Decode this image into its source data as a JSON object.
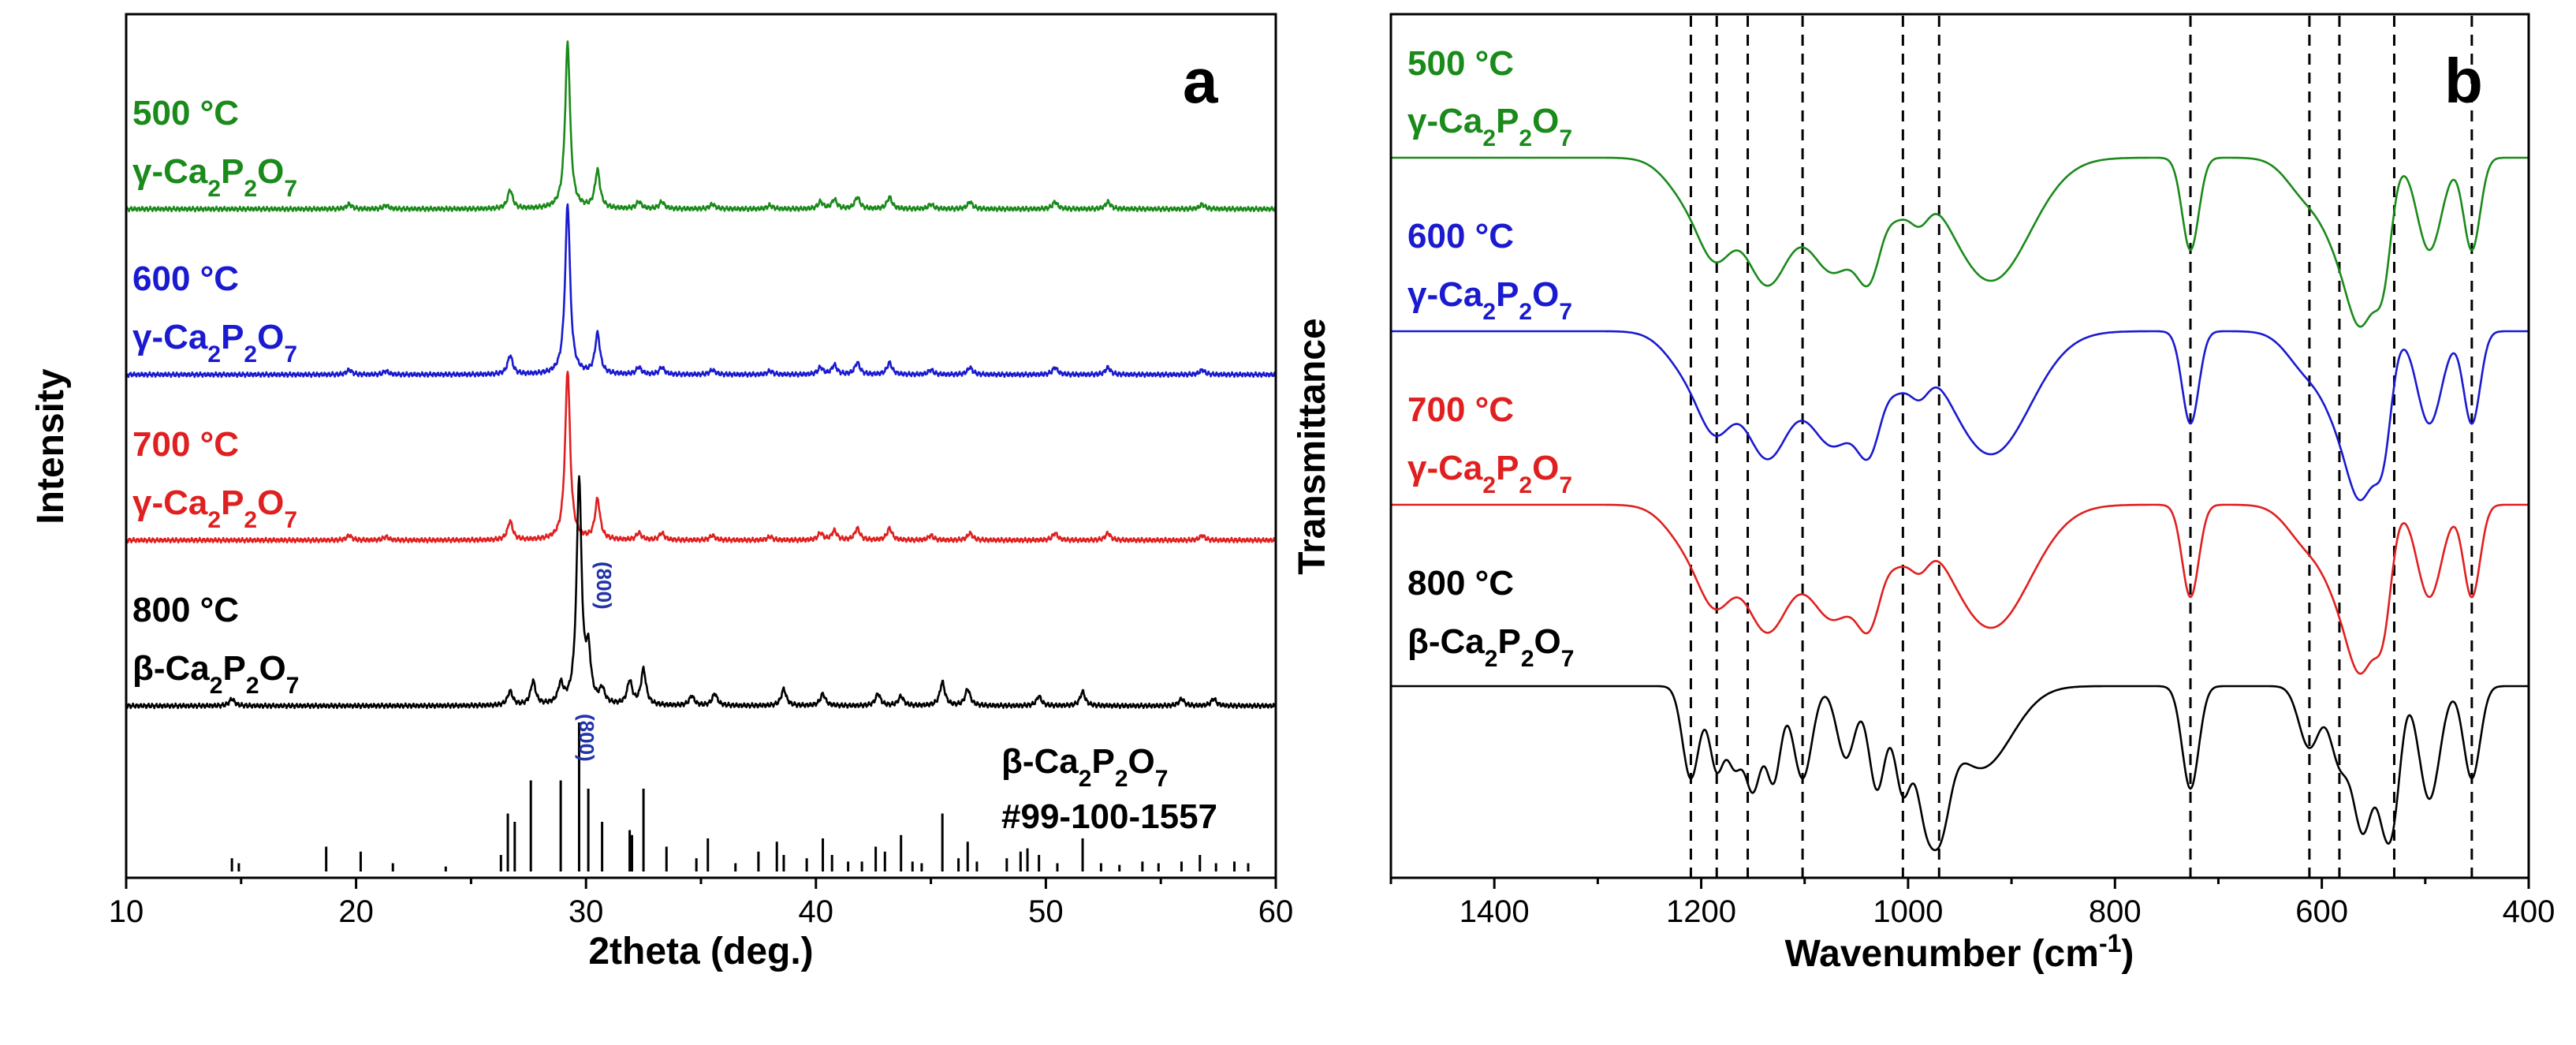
{
  "chart_data": [
    {
      "type": "line",
      "panel_label": "a",
      "xlabel": "2theta (deg.)",
      "ylabel": "Intensity",
      "xlim": [
        10,
        60
      ],
      "xticks": [
        10,
        20,
        30,
        40,
        50,
        60
      ],
      "series": [
        {
          "name": "500 °C",
          "phase": "γ-Ca2P2O7",
          "color": "#1a8a1a",
          "offset": 3,
          "peaks": [
            [
              19.7,
              0.02
            ],
            [
              21.3,
              0.015
            ],
            [
              26.7,
              0.08
            ],
            [
              29.2,
              0.7
            ],
            [
              30.5,
              0.16
            ],
            [
              32.3,
              0.03
            ],
            [
              33.3,
              0.03
            ],
            [
              35.5,
              0.02
            ],
            [
              38.0,
              0.015
            ],
            [
              40.2,
              0.03
            ],
            [
              40.8,
              0.04
            ],
            [
              41.8,
              0.05
            ],
            [
              43.2,
              0.05
            ],
            [
              45.0,
              0.02
            ],
            [
              46.7,
              0.03
            ],
            [
              50.4,
              0.03
            ],
            [
              52.7,
              0.03
            ],
            [
              56.8,
              0.02
            ]
          ]
        },
        {
          "name": "600 °C",
          "phase": "γ-Ca2P2O7",
          "color": "#1a1ad0",
          "offset": 2,
          "peaks": [
            [
              19.7,
              0.02
            ],
            [
              21.3,
              0.015
            ],
            [
              26.7,
              0.08
            ],
            [
              29.2,
              0.72
            ],
            [
              30.5,
              0.17
            ],
            [
              32.3,
              0.03
            ],
            [
              33.3,
              0.03
            ],
            [
              35.5,
              0.02
            ],
            [
              38.0,
              0.015
            ],
            [
              40.2,
              0.03
            ],
            [
              40.8,
              0.04
            ],
            [
              41.8,
              0.05
            ],
            [
              43.2,
              0.05
            ],
            [
              45.0,
              0.02
            ],
            [
              46.7,
              0.03
            ],
            [
              50.4,
              0.03
            ],
            [
              52.7,
              0.03
            ],
            [
              56.8,
              0.02
            ]
          ]
        },
        {
          "name": "700 °C",
          "phase": "γ-Ca2P2O7",
          "color": "#e02020",
          "offset": 1,
          "peaks": [
            [
              19.7,
              0.02
            ],
            [
              21.3,
              0.015
            ],
            [
              26.7,
              0.08
            ],
            [
              29.2,
              0.72
            ],
            [
              30.5,
              0.17
            ],
            [
              32.3,
              0.03
            ],
            [
              33.3,
              0.03
            ],
            [
              35.5,
              0.02
            ],
            [
              38.0,
              0.015
            ],
            [
              40.2,
              0.03
            ],
            [
              40.8,
              0.04
            ],
            [
              41.8,
              0.05
            ],
            [
              43.2,
              0.05
            ],
            [
              45.0,
              0.02
            ],
            [
              46.7,
              0.03
            ],
            [
              50.4,
              0.03
            ],
            [
              52.7,
              0.03
            ],
            [
              56.8,
              0.02
            ]
          ]
        },
        {
          "name": "800 °C",
          "phase": "β-Ca2P2O7",
          "color": "#000000",
          "offset": 0,
          "peaks": [
            [
              14.6,
              0.03
            ],
            [
              26.7,
              0.06
            ],
            [
              27.7,
              0.1
            ],
            [
              28.9,
              0.08
            ],
            [
              29.7,
              0.95
            ],
            [
              30.1,
              0.2
            ],
            [
              30.7,
              0.06
            ],
            [
              31.9,
              0.1
            ],
            [
              32.5,
              0.15
            ],
            [
              34.6,
              0.04
            ],
            [
              35.6,
              0.05
            ],
            [
              38.6,
              0.07
            ],
            [
              40.3,
              0.05
            ],
            [
              42.7,
              0.05
            ],
            [
              43.7,
              0.04
            ],
            [
              45.5,
              0.1
            ],
            [
              46.6,
              0.07
            ],
            [
              49.7,
              0.04
            ],
            [
              51.6,
              0.06
            ],
            [
              55.9,
              0.03
            ],
            [
              57.3,
              0.03
            ]
          ]
        }
      ],
      "annotation_800": "(800)",
      "reference": {
        "phase": "β-Ca2P2O7",
        "card": "#99-100-1557",
        "lines": [
          [
            14.6,
            0.08
          ],
          [
            14.9,
            0.05
          ],
          [
            18.7,
            0.15
          ],
          [
            20.2,
            0.12
          ],
          [
            21.6,
            0.05
          ],
          [
            23.9,
            0.03
          ],
          [
            26.3,
            0.1
          ],
          [
            26.6,
            0.35
          ],
          [
            26.9,
            0.3
          ],
          [
            27.6,
            0.55
          ],
          [
            28.9,
            0.55
          ],
          [
            29.7,
            0.9
          ],
          [
            30.1,
            0.5
          ],
          [
            30.7,
            0.3
          ],
          [
            31.9,
            0.25
          ],
          [
            32.0,
            0.22
          ],
          [
            32.5,
            0.5
          ],
          [
            33.5,
            0.15
          ],
          [
            34.8,
            0.08
          ],
          [
            35.3,
            0.2
          ],
          [
            36.5,
            0.05
          ],
          [
            37.5,
            0.12
          ],
          [
            38.3,
            0.18
          ],
          [
            38.6,
            0.1
          ],
          [
            39.6,
            0.08
          ],
          [
            40.3,
            0.2
          ],
          [
            40.7,
            0.1
          ],
          [
            41.4,
            0.06
          ],
          [
            42.0,
            0.06
          ],
          [
            42.6,
            0.15
          ],
          [
            43.0,
            0.12
          ],
          [
            43.7,
            0.22
          ],
          [
            44.2,
            0.06
          ],
          [
            44.6,
            0.05
          ],
          [
            45.5,
            0.35
          ],
          [
            46.2,
            0.08
          ],
          [
            46.6,
            0.18
          ],
          [
            47.0,
            0.06
          ],
          [
            48.3,
            0.08
          ],
          [
            48.9,
            0.12
          ],
          [
            49.2,
            0.14
          ],
          [
            49.7,
            0.1
          ],
          [
            50.5,
            0.05
          ],
          [
            51.6,
            0.2
          ],
          [
            52.4,
            0.05
          ],
          [
            53.2,
            0.04
          ],
          [
            54.2,
            0.06
          ],
          [
            54.9,
            0.05
          ],
          [
            55.9,
            0.06
          ],
          [
            56.7,
            0.1
          ],
          [
            57.4,
            0.05
          ],
          [
            58.2,
            0.06
          ],
          [
            58.8,
            0.05
          ]
        ]
      }
    },
    {
      "type": "line",
      "panel_label": "b",
      "xlabel": "Wavenumber (cm-1)",
      "ylabel": "Transmittance",
      "xlim": [
        1500,
        400
      ],
      "xticks": [
        1400,
        1200,
        1000,
        800,
        600,
        400
      ],
      "reference_lines": [
        1210,
        1185,
        1155,
        1102,
        1005,
        970,
        727,
        612,
        583,
        530,
        455
      ],
      "series": [
        {
          "name": "500 °C",
          "phase": "γ-Ca2P2O7",
          "color": "#1a8a1a",
          "offset": 3,
          "bands": [
            [
              1210,
              0.2,
              22
            ],
            [
              1185,
              0.35,
              16
            ],
            [
              1137,
              0.6,
              22
            ],
            [
              1072,
              0.55,
              25
            ],
            [
              1036,
              0.4,
              12
            ],
            [
              1010,
              0.18,
              10
            ],
            [
              990,
              0.2,
              10
            ],
            [
              920,
              0.6,
              38
            ],
            [
              727,
              0.45,
              8
            ],
            [
              612,
              0.2,
              20
            ],
            [
              583,
              0.3,
              15
            ],
            [
              560,
              0.7,
              14
            ],
            [
              540,
              0.4,
              8
            ],
            [
              496,
              0.45,
              12
            ],
            [
              455,
              0.45,
              8
            ]
          ]
        },
        {
          "name": "600 °C",
          "phase": "γ-Ca2P2O7",
          "color": "#1a1ad0",
          "offset": 2,
          "bands": [
            [
              1210,
              0.2,
              22
            ],
            [
              1185,
              0.35,
              16
            ],
            [
              1137,
              0.6,
              22
            ],
            [
              1072,
              0.55,
              25
            ],
            [
              1036,
              0.4,
              12
            ],
            [
              1010,
              0.18,
              10
            ],
            [
              990,
              0.2,
              10
            ],
            [
              920,
              0.6,
              38
            ],
            [
              727,
              0.45,
              8
            ],
            [
              612,
              0.2,
              20
            ],
            [
              583,
              0.3,
              15
            ],
            [
              560,
              0.7,
              14
            ],
            [
              540,
              0.4,
              8
            ],
            [
              496,
              0.45,
              12
            ],
            [
              455,
              0.45,
              8
            ]
          ]
        },
        {
          "name": "700 °C",
          "phase": "γ-Ca2P2O7",
          "color": "#e02020",
          "offset": 1,
          "bands": [
            [
              1210,
              0.2,
              22
            ],
            [
              1185,
              0.35,
              16
            ],
            [
              1137,
              0.6,
              22
            ],
            [
              1072,
              0.55,
              25
            ],
            [
              1036,
              0.4,
              12
            ],
            [
              1010,
              0.18,
              10
            ],
            [
              990,
              0.2,
              10
            ],
            [
              920,
              0.6,
              38
            ],
            [
              727,
              0.45,
              8
            ],
            [
              612,
              0.2,
              20
            ],
            [
              583,
              0.3,
              15
            ],
            [
              560,
              0.7,
              14
            ],
            [
              540,
              0.4,
              8
            ],
            [
              496,
              0.45,
              12
            ],
            [
              455,
              0.45,
              8
            ]
          ]
        },
        {
          "name": "800 °C",
          "phase": "β-Ca2P2O7",
          "color": "#000000",
          "offset": 0,
          "bands": [
            [
              1210,
              0.45,
              8
            ],
            [
              1185,
              0.4,
              7
            ],
            [
              1168,
              0.35,
              7
            ],
            [
              1150,
              0.5,
              8
            ],
            [
              1130,
              0.45,
              7
            ],
            [
              1102,
              0.45,
              9
            ],
            [
              1060,
              0.35,
              9
            ],
            [
              1030,
              0.5,
              8
            ],
            [
              1005,
              0.5,
              8
            ],
            [
              985,
              0.4,
              8
            ],
            [
              970,
              0.55,
              10
            ],
            [
              930,
              0.4,
              30
            ],
            [
              727,
              0.5,
              8
            ],
            [
              612,
              0.3,
              10
            ],
            [
              583,
              0.35,
              9
            ],
            [
              560,
              0.7,
              10
            ],
            [
              540,
              0.45,
              7
            ],
            [
              530,
              0.5,
              7
            ],
            [
              496,
              0.55,
              10
            ],
            [
              455,
              0.45,
              8
            ]
          ]
        }
      ]
    }
  ]
}
